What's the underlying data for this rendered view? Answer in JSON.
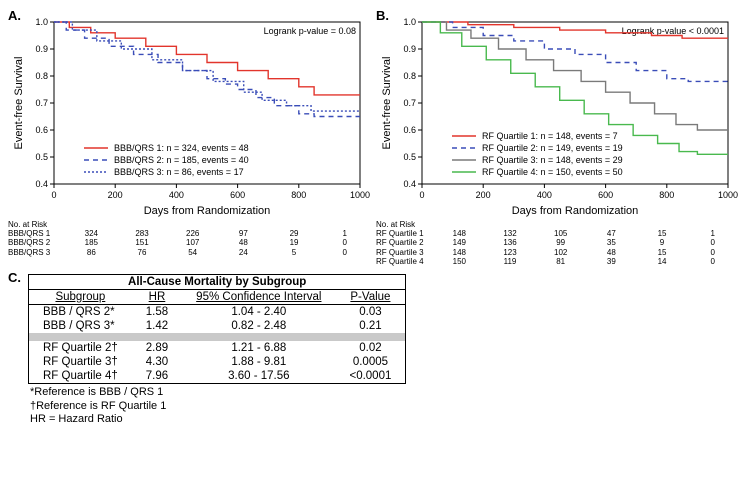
{
  "panelA": {
    "label": "A.",
    "type": "kaplan-meier",
    "pvalue_text": "Logrank p-value = 0.08",
    "xlabel": "Days from Randomization",
    "ylabel": "Event-free Survival",
    "xlim": [
      0,
      1000
    ],
    "ylim": [
      0.4,
      1.0
    ],
    "xticks": [
      0,
      200,
      400,
      600,
      800,
      1000
    ],
    "yticks": [
      0.4,
      0.5,
      0.6,
      0.7,
      0.8,
      0.9,
      1.0
    ],
    "background": "#ffffff",
    "axis_color": "#000000",
    "series": [
      {
        "name": "BBB/QRS 1",
        "color": "#e2352c",
        "dash": "none",
        "legend": "BBB/QRS 1: n = 324, events = 48",
        "points": [
          [
            0,
            1.0
          ],
          [
            50,
            0.98
          ],
          [
            120,
            0.96
          ],
          [
            200,
            0.94
          ],
          [
            300,
            0.91
          ],
          [
            400,
            0.88
          ],
          [
            500,
            0.85
          ],
          [
            600,
            0.82
          ],
          [
            700,
            0.79
          ],
          [
            800,
            0.76
          ],
          [
            850,
            0.73
          ],
          [
            900,
            0.73
          ],
          [
            1000,
            0.73
          ]
        ]
      },
      {
        "name": "BBB/QRS 2",
        "color": "#3a4db8",
        "dash": "5,4",
        "legend": "BBB/QRS 2: n = 185, events = 40",
        "points": [
          [
            0,
            1.0
          ],
          [
            40,
            0.97
          ],
          [
            100,
            0.94
          ],
          [
            180,
            0.91
          ],
          [
            260,
            0.88
          ],
          [
            340,
            0.85
          ],
          [
            420,
            0.82
          ],
          [
            500,
            0.79
          ],
          [
            560,
            0.77
          ],
          [
            600,
            0.75
          ],
          [
            660,
            0.72
          ],
          [
            720,
            0.69
          ],
          [
            800,
            0.66
          ],
          [
            850,
            0.65
          ],
          [
            900,
            0.65
          ],
          [
            1000,
            0.65
          ]
        ]
      },
      {
        "name": "BBB/QRS 3",
        "color": "#3a4db8",
        "dash": "2,2",
        "legend": "BBB/QRS 3: n = 86, events = 17",
        "points": [
          [
            0,
            1.0
          ],
          [
            60,
            0.97
          ],
          [
            140,
            0.93
          ],
          [
            220,
            0.9
          ],
          [
            320,
            0.86
          ],
          [
            420,
            0.82
          ],
          [
            520,
            0.78
          ],
          [
            620,
            0.74
          ],
          [
            680,
            0.71
          ],
          [
            760,
            0.69
          ],
          [
            840,
            0.67
          ],
          [
            900,
            0.67
          ],
          [
            1000,
            0.67
          ]
        ]
      }
    ],
    "risk_header": "No. at Risk",
    "risk": [
      {
        "label": "BBB/QRS 1",
        "vals": [
          "324",
          "283",
          "226",
          "97",
          "29",
          "1"
        ]
      },
      {
        "label": "BBB/QRS 2",
        "vals": [
          "185",
          "151",
          "107",
          "48",
          "19",
          "0"
        ]
      },
      {
        "label": "BBB/QRS 3",
        "vals": [
          "86",
          "76",
          "54",
          "24",
          "5",
          "0"
        ]
      }
    ]
  },
  "panelB": {
    "label": "B.",
    "type": "kaplan-meier",
    "pvalue_text": "Logrank p-value < 0.0001",
    "xlabel": "Days from Randomization",
    "ylabel": "Event-free Survival",
    "xlim": [
      0,
      1000
    ],
    "ylim": [
      0.4,
      1.0
    ],
    "xticks": [
      0,
      200,
      400,
      600,
      800,
      1000
    ],
    "yticks": [
      0.4,
      0.5,
      0.6,
      0.7,
      0.8,
      0.9,
      1.0
    ],
    "background": "#ffffff",
    "axis_color": "#000000",
    "series": [
      {
        "name": "RF Quartile 1",
        "color": "#e2352c",
        "dash": "none",
        "legend": "RF Quartile 1: n = 148, events = 7",
        "points": [
          [
            0,
            1.0
          ],
          [
            150,
            0.99
          ],
          [
            300,
            0.98
          ],
          [
            450,
            0.97
          ],
          [
            600,
            0.96
          ],
          [
            750,
            0.95
          ],
          [
            850,
            0.94
          ],
          [
            1000,
            0.94
          ]
        ]
      },
      {
        "name": "RF Quartile 2",
        "color": "#3a4db8",
        "dash": "5,4",
        "legend": "RF Quartile 2: n = 149, events = 19",
        "points": [
          [
            0,
            1.0
          ],
          [
            100,
            0.98
          ],
          [
            200,
            0.95
          ],
          [
            300,
            0.93
          ],
          [
            400,
            0.9
          ],
          [
            500,
            0.88
          ],
          [
            600,
            0.85
          ],
          [
            700,
            0.82
          ],
          [
            800,
            0.79
          ],
          [
            870,
            0.78
          ],
          [
            1000,
            0.78
          ]
        ]
      },
      {
        "name": "RF Quartile 3",
        "color": "#7a7a7a",
        "dash": "none",
        "legend": "RF Quartile 3: n = 148, events = 29",
        "points": [
          [
            0,
            1.0
          ],
          [
            80,
            0.97
          ],
          [
            160,
            0.94
          ],
          [
            250,
            0.9
          ],
          [
            340,
            0.86
          ],
          [
            430,
            0.82
          ],
          [
            520,
            0.78
          ],
          [
            600,
            0.74
          ],
          [
            680,
            0.7
          ],
          [
            760,
            0.66
          ],
          [
            830,
            0.62
          ],
          [
            900,
            0.6
          ],
          [
            1000,
            0.6
          ]
        ]
      },
      {
        "name": "RF Quartile 4",
        "color": "#49b94e",
        "dash": "none",
        "legend": "RF Quartile 4: n = 150, events = 50",
        "points": [
          [
            0,
            1.0
          ],
          [
            60,
            0.96
          ],
          [
            130,
            0.91
          ],
          [
            210,
            0.86
          ],
          [
            290,
            0.81
          ],
          [
            370,
            0.76
          ],
          [
            450,
            0.71
          ],
          [
            530,
            0.66
          ],
          [
            610,
            0.62
          ],
          [
            690,
            0.58
          ],
          [
            770,
            0.55
          ],
          [
            840,
            0.52
          ],
          [
            900,
            0.51
          ],
          [
            1000,
            0.51
          ]
        ]
      }
    ],
    "risk_header": "No. at Risk",
    "risk": [
      {
        "label": "RF Quartile 1",
        "vals": [
          "148",
          "132",
          "105",
          "47",
          "15",
          "1"
        ]
      },
      {
        "label": "RF Quartile 2",
        "vals": [
          "149",
          "136",
          "99",
          "35",
          "9",
          "0"
        ]
      },
      {
        "label": "RF Quartile 3",
        "vals": [
          "148",
          "123",
          "102",
          "48",
          "15",
          "0"
        ]
      },
      {
        "label": "RF Quartile 4",
        "vals": [
          "150",
          "119",
          "81",
          "39",
          "14",
          "0"
        ]
      }
    ]
  },
  "panelC": {
    "label": "C.",
    "title": "All-Cause Mortality by Subgroup",
    "columns": [
      "Subgroup",
      "HR",
      "95% Confidence Interval",
      "P-Value"
    ],
    "rows_top": [
      {
        "sub": "BBB / QRS 2*",
        "hr": "1.58",
        "ci": "1.04 - 2.40",
        "p": "0.03"
      },
      {
        "sub": "BBB / QRS 3*",
        "hr": "1.42",
        "ci": "0.82 - 2.48",
        "p": "0.21"
      }
    ],
    "rows_bot": [
      {
        "sub": "RF Quartile 2†",
        "hr": "2.89",
        "ci": "1.21 - 6.88",
        "p": "0.02"
      },
      {
        "sub": "RF Quartile 3†",
        "hr": "4.30",
        "ci": "1.88 - 9.81",
        "p": "0.0005"
      },
      {
        "sub": "RF Quartile 4†",
        "hr": "7.96",
        "ci": "3.60 - 17.56",
        "p": "<0.0001"
      }
    ],
    "footnotes": [
      "*Reference is BBB / QRS 1",
      "†Reference is RF Quartile 1",
      "HR = Hazard Ratio"
    ]
  }
}
